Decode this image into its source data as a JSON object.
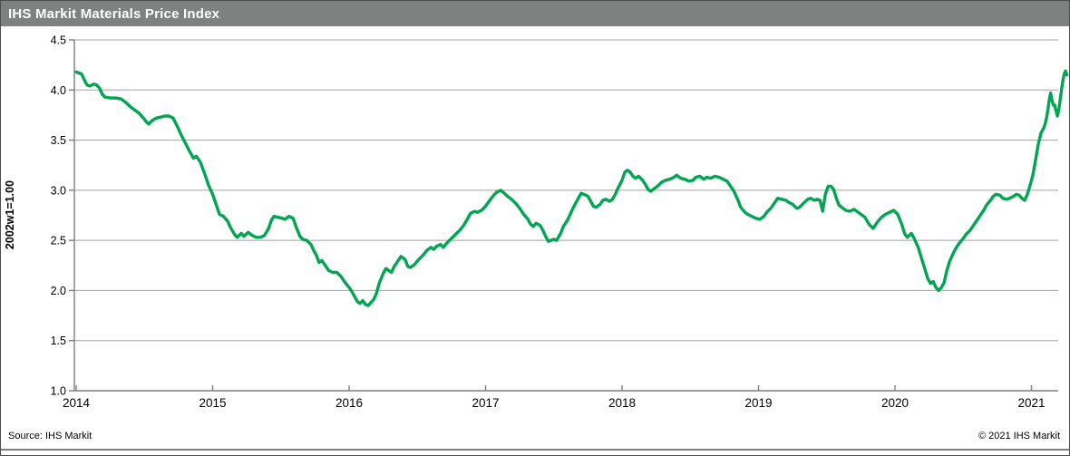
{
  "title": "IHS Markit Materials Price Index",
  "footer": {
    "source": "Source: IHS Markit",
    "copyright": "© 2021  IHS Markit"
  },
  "colors": {
    "line": "#00a651",
    "titlebar": "#7f8080",
    "gridline": "#a3a3a3",
    "axis": "#7f7f7f"
  },
  "chart_data": {
    "type": "line",
    "title": "IHS Markit Materials Price Index",
    "xlabel": "",
    "ylabel": "2002w1=1.00",
    "ylim": [
      1.0,
      4.5
    ],
    "xlim": [
      2014.0,
      2021.26
    ],
    "grid": "horizontal",
    "legend": "none",
    "y_ticks": [
      4.5,
      4.0,
      3.5,
      3.0,
      2.5,
      2.0,
      1.5,
      1.0
    ],
    "y_tick_labels": [
      "4.5",
      "4.0",
      "3.5",
      "3.0",
      "2.5",
      "2.0",
      "1.5",
      "1.0"
    ],
    "x_ticks": [
      2014,
      2015,
      2016,
      2017,
      2018,
      2019,
      2020,
      2021
    ],
    "x_tick_labels": [
      "2014",
      "2015",
      "2016",
      "2017",
      "2018",
      "2019",
      "2020",
      "2021"
    ],
    "series": [
      {
        "name": "Materials Price Index (2002w1=1.00)",
        "points": [
          [
            2014.0,
            4.18
          ],
          [
            2014.02,
            4.17
          ],
          [
            2014.04,
            4.16
          ],
          [
            2014.06,
            4.1
          ],
          [
            2014.08,
            4.05
          ],
          [
            2014.1,
            4.04
          ],
          [
            2014.13,
            4.06
          ],
          [
            2014.15,
            4.05
          ],
          [
            2014.17,
            4.02
          ],
          [
            2014.19,
            3.96
          ],
          [
            2014.21,
            3.93
          ],
          [
            2014.25,
            3.92
          ],
          [
            2014.29,
            3.92
          ],
          [
            2014.33,
            3.91
          ],
          [
            2014.36,
            3.88
          ],
          [
            2014.4,
            3.83
          ],
          [
            2014.44,
            3.79
          ],
          [
            2014.46,
            3.77
          ],
          [
            2014.48,
            3.74
          ],
          [
            2014.51,
            3.69
          ],
          [
            2014.53,
            3.66
          ],
          [
            2014.56,
            3.7
          ],
          [
            2014.59,
            3.72
          ],
          [
            2014.62,
            3.73
          ],
          [
            2014.65,
            3.74
          ],
          [
            2014.68,
            3.74
          ],
          [
            2014.71,
            3.72
          ],
          [
            2014.74,
            3.64
          ],
          [
            2014.77,
            3.55
          ],
          [
            2014.8,
            3.47
          ],
          [
            2014.83,
            3.39
          ],
          [
            2014.86,
            3.32
          ],
          [
            2014.88,
            3.34
          ],
          [
            2014.91,
            3.28
          ],
          [
            2014.94,
            3.17
          ],
          [
            2014.97,
            3.05
          ],
          [
            2015.0,
            2.96
          ],
          [
            2015.03,
            2.84
          ],
          [
            2015.05,
            2.76
          ],
          [
            2015.08,
            2.74
          ],
          [
            2015.11,
            2.69
          ],
          [
            2015.13,
            2.63
          ],
          [
            2015.16,
            2.56
          ],
          [
            2015.18,
            2.53
          ],
          [
            2015.21,
            2.57
          ],
          [
            2015.23,
            2.54
          ],
          [
            2015.26,
            2.58
          ],
          [
            2015.29,
            2.55
          ],
          [
            2015.32,
            2.53
          ],
          [
            2015.35,
            2.53
          ],
          [
            2015.38,
            2.55
          ],
          [
            2015.41,
            2.62
          ],
          [
            2015.43,
            2.7
          ],
          [
            2015.45,
            2.74
          ],
          [
            2015.48,
            2.73
          ],
          [
            2015.51,
            2.72
          ],
          [
            2015.53,
            2.71
          ],
          [
            2015.56,
            2.74
          ],
          [
            2015.59,
            2.72
          ],
          [
            2015.61,
            2.64
          ],
          [
            2015.64,
            2.54
          ],
          [
            2015.66,
            2.51
          ],
          [
            2015.69,
            2.5
          ],
          [
            2015.72,
            2.46
          ],
          [
            2015.74,
            2.4
          ],
          [
            2015.76,
            2.35
          ],
          [
            2015.78,
            2.28
          ],
          [
            2015.8,
            2.3
          ],
          [
            2015.83,
            2.24
          ],
          [
            2015.85,
            2.2
          ],
          [
            2015.88,
            2.18
          ],
          [
            2015.91,
            2.18
          ],
          [
            2015.94,
            2.14
          ],
          [
            2015.97,
            2.08
          ],
          [
            2016.0,
            2.03
          ],
          [
            2016.02,
            1.99
          ],
          [
            2016.04,
            1.94
          ],
          [
            2016.06,
            1.89
          ],
          [
            2016.08,
            1.87
          ],
          [
            2016.1,
            1.9
          ],
          [
            2016.12,
            1.86
          ],
          [
            2016.14,
            1.85
          ],
          [
            2016.16,
            1.88
          ],
          [
            2016.18,
            1.91
          ],
          [
            2016.2,
            1.97
          ],
          [
            2016.22,
            2.07
          ],
          [
            2016.25,
            2.17
          ],
          [
            2016.27,
            2.22
          ],
          [
            2016.29,
            2.2
          ],
          [
            2016.31,
            2.18
          ],
          [
            2016.33,
            2.24
          ],
          [
            2016.36,
            2.3
          ],
          [
            2016.38,
            2.34
          ],
          [
            2016.41,
            2.31
          ],
          [
            2016.43,
            2.24
          ],
          [
            2016.45,
            2.23
          ],
          [
            2016.48,
            2.26
          ],
          [
            2016.51,
            2.31
          ],
          [
            2016.54,
            2.35
          ],
          [
            2016.57,
            2.4
          ],
          [
            2016.6,
            2.43
          ],
          [
            2016.62,
            2.41
          ],
          [
            2016.64,
            2.44
          ],
          [
            2016.67,
            2.46
          ],
          [
            2016.69,
            2.43
          ],
          [
            2016.72,
            2.48
          ],
          [
            2016.75,
            2.52
          ],
          [
            2016.78,
            2.56
          ],
          [
            2016.81,
            2.6
          ],
          [
            2016.84,
            2.65
          ],
          [
            2016.87,
            2.72
          ],
          [
            2016.89,
            2.77
          ],
          [
            2016.92,
            2.79
          ],
          [
            2016.94,
            2.78
          ],
          [
            2016.97,
            2.8
          ],
          [
            2017.0,
            2.84
          ],
          [
            2017.03,
            2.9
          ],
          [
            2017.06,
            2.95
          ],
          [
            2017.08,
            2.98
          ],
          [
            2017.11,
            3.0
          ],
          [
            2017.13,
            2.98
          ],
          [
            2017.16,
            2.94
          ],
          [
            2017.19,
            2.91
          ],
          [
            2017.22,
            2.87
          ],
          [
            2017.25,
            2.82
          ],
          [
            2017.28,
            2.76
          ],
          [
            2017.31,
            2.71
          ],
          [
            2017.33,
            2.66
          ],
          [
            2017.35,
            2.64
          ],
          [
            2017.37,
            2.67
          ],
          [
            2017.4,
            2.65
          ],
          [
            2017.42,
            2.6
          ],
          [
            2017.44,
            2.54
          ],
          [
            2017.46,
            2.49
          ],
          [
            2017.48,
            2.5
          ],
          [
            2017.5,
            2.51
          ],
          [
            2017.52,
            2.5
          ],
          [
            2017.55,
            2.57
          ],
          [
            2017.57,
            2.64
          ],
          [
            2017.6,
            2.7
          ],
          [
            2017.62,
            2.76
          ],
          [
            2017.64,
            2.82
          ],
          [
            2017.66,
            2.87
          ],
          [
            2017.68,
            2.92
          ],
          [
            2017.7,
            2.97
          ],
          [
            2017.72,
            2.96
          ],
          [
            2017.75,
            2.94
          ],
          [
            2017.77,
            2.89
          ],
          [
            2017.79,
            2.84
          ],
          [
            2017.81,
            2.83
          ],
          [
            2017.84,
            2.86
          ],
          [
            2017.86,
            2.9
          ],
          [
            2017.88,
            2.91
          ],
          [
            2017.91,
            2.89
          ],
          [
            2017.93,
            2.91
          ],
          [
            2017.95,
            2.96
          ],
          [
            2017.97,
            3.02
          ],
          [
            2018.0,
            3.1
          ],
          [
            2018.02,
            3.18
          ],
          [
            2018.04,
            3.2
          ],
          [
            2018.06,
            3.18
          ],
          [
            2018.08,
            3.14
          ],
          [
            2018.1,
            3.12
          ],
          [
            2018.12,
            3.14
          ],
          [
            2018.15,
            3.1
          ],
          [
            2018.17,
            3.06
          ],
          [
            2018.19,
            3.01
          ],
          [
            2018.21,
            2.99
          ],
          [
            2018.23,
            3.01
          ],
          [
            2018.26,
            3.04
          ],
          [
            2018.29,
            3.08
          ],
          [
            2018.32,
            3.1
          ],
          [
            2018.35,
            3.11
          ],
          [
            2018.38,
            3.13
          ],
          [
            2018.4,
            3.15
          ],
          [
            2018.43,
            3.12
          ],
          [
            2018.46,
            3.11
          ],
          [
            2018.49,
            3.09
          ],
          [
            2018.52,
            3.1
          ],
          [
            2018.54,
            3.13
          ],
          [
            2018.57,
            3.14
          ],
          [
            2018.6,
            3.11
          ],
          [
            2018.62,
            3.13
          ],
          [
            2018.65,
            3.12
          ],
          [
            2018.68,
            3.14
          ],
          [
            2018.71,
            3.13
          ],
          [
            2018.74,
            3.11
          ],
          [
            2018.77,
            3.09
          ],
          [
            2018.79,
            3.05
          ],
          [
            2018.82,
            2.99
          ],
          [
            2018.85,
            2.9
          ],
          [
            2018.87,
            2.83
          ],
          [
            2018.9,
            2.78
          ],
          [
            2018.92,
            2.76
          ],
          [
            2018.95,
            2.74
          ],
          [
            2018.98,
            2.72
          ],
          [
            2019.01,
            2.71
          ],
          [
            2019.04,
            2.74
          ],
          [
            2019.06,
            2.78
          ],
          [
            2019.09,
            2.82
          ],
          [
            2019.12,
            2.88
          ],
          [
            2019.14,
            2.92
          ],
          [
            2019.17,
            2.91
          ],
          [
            2019.2,
            2.9
          ],
          [
            2019.22,
            2.88
          ],
          [
            2019.25,
            2.86
          ],
          [
            2019.28,
            2.82
          ],
          [
            2019.3,
            2.83
          ],
          [
            2019.33,
            2.87
          ],
          [
            2019.36,
            2.91
          ],
          [
            2019.38,
            2.92
          ],
          [
            2019.41,
            2.9
          ],
          [
            2019.43,
            2.91
          ],
          [
            2019.45,
            2.9
          ],
          [
            2019.47,
            2.79
          ],
          [
            2019.49,
            2.96
          ],
          [
            2019.51,
            3.04
          ],
          [
            2019.53,
            3.04
          ],
          [
            2019.55,
            3.01
          ],
          [
            2019.57,
            2.92
          ],
          [
            2019.59,
            2.85
          ],
          [
            2019.62,
            2.82
          ],
          [
            2019.64,
            2.8
          ],
          [
            2019.67,
            2.79
          ],
          [
            2019.7,
            2.81
          ],
          [
            2019.72,
            2.79
          ],
          [
            2019.75,
            2.76
          ],
          [
            2019.78,
            2.73
          ],
          [
            2019.81,
            2.66
          ],
          [
            2019.84,
            2.62
          ],
          [
            2019.87,
            2.68
          ],
          [
            2019.9,
            2.73
          ],
          [
            2019.93,
            2.76
          ],
          [
            2019.96,
            2.78
          ],
          [
            2019.99,
            2.8
          ],
          [
            2020.02,
            2.76
          ],
          [
            2020.05,
            2.66
          ],
          [
            2020.07,
            2.57
          ],
          [
            2020.09,
            2.53
          ],
          [
            2020.12,
            2.57
          ],
          [
            2020.14,
            2.52
          ],
          [
            2020.17,
            2.43
          ],
          [
            2020.19,
            2.34
          ],
          [
            2020.22,
            2.21
          ],
          [
            2020.24,
            2.12
          ],
          [
            2020.26,
            2.07
          ],
          [
            2020.28,
            2.09
          ],
          [
            2020.3,
            2.03
          ],
          [
            2020.32,
            2.0
          ],
          [
            2020.34,
            2.03
          ],
          [
            2020.36,
            2.08
          ],
          [
            2020.38,
            2.2
          ],
          [
            2020.4,
            2.29
          ],
          [
            2020.43,
            2.38
          ],
          [
            2020.45,
            2.43
          ],
          [
            2020.47,
            2.47
          ],
          [
            2020.5,
            2.52
          ],
          [
            2020.52,
            2.56
          ],
          [
            2020.55,
            2.6
          ],
          [
            2020.57,
            2.64
          ],
          [
            2020.6,
            2.7
          ],
          [
            2020.62,
            2.74
          ],
          [
            2020.65,
            2.8
          ],
          [
            2020.67,
            2.85
          ],
          [
            2020.7,
            2.9
          ],
          [
            2020.72,
            2.94
          ],
          [
            2020.74,
            2.96
          ],
          [
            2020.77,
            2.95
          ],
          [
            2020.79,
            2.92
          ],
          [
            2020.82,
            2.91
          ],
          [
            2020.84,
            2.92
          ],
          [
            2020.87,
            2.94
          ],
          [
            2020.89,
            2.96
          ],
          [
            2020.91,
            2.95
          ],
          [
            2020.93,
            2.92
          ],
          [
            2020.95,
            2.9
          ],
          [
            2020.97,
            2.96
          ],
          [
            2020.99,
            3.05
          ],
          [
            2021.01,
            3.15
          ],
          [
            2021.03,
            3.3
          ],
          [
            2021.05,
            3.46
          ],
          [
            2021.07,
            3.57
          ],
          [
            2021.09,
            3.62
          ],
          [
            2021.1,
            3.66
          ],
          [
            2021.11,
            3.72
          ],
          [
            2021.12,
            3.8
          ],
          [
            2021.13,
            3.9
          ],
          [
            2021.14,
            3.97
          ],
          [
            2021.15,
            3.9
          ],
          [
            2021.16,
            3.85
          ],
          [
            2021.17,
            3.85
          ],
          [
            2021.18,
            3.79
          ],
          [
            2021.19,
            3.74
          ],
          [
            2021.2,
            3.8
          ],
          [
            2021.21,
            3.9
          ],
          [
            2021.22,
            4.0
          ],
          [
            2021.23,
            4.09
          ],
          [
            2021.24,
            4.16
          ],
          [
            2021.25,
            4.19
          ],
          [
            2021.26,
            4.15
          ]
        ]
      }
    ]
  }
}
